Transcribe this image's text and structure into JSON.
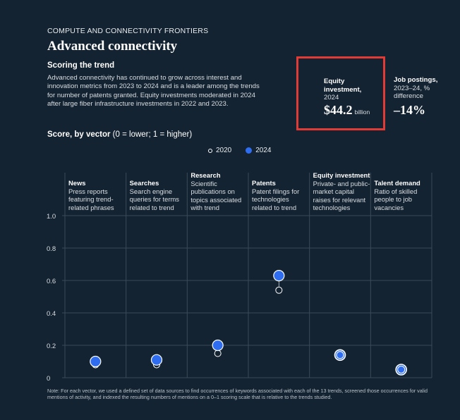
{
  "header": {
    "eyebrow": "COMPUTE AND CONNECTIVITY FRONTIERS",
    "title": "Advanced connectivity",
    "subtitle": "Scoring the trend",
    "description": "Advanced connectivity has continued to grow across interest and innovation metrics from 2023 to 2024 and is a leader among the trends for number of patents granted. Equity investments moderated in 2024 after large fiber infrastructure investments in 2022 and 2023."
  },
  "kpis": [
    {
      "label_bold": "Equity investment,",
      "label_sub": "2024",
      "value": "$44.2",
      "unit": "billion"
    },
    {
      "label_bold": "Job postings,",
      "label_sub": "2023–24, % difference",
      "value": "–14%"
    }
  ],
  "chart_title": {
    "bold": "Score, by vector",
    "rest": " (0 = lower; 1 = higher)"
  },
  "legend": {
    "series_2020": "2020",
    "series_2024": "2024"
  },
  "columns": [
    {
      "name": "News",
      "desc": "Press reports featuring trend-related phrases"
    },
    {
      "name": "Searches",
      "desc": "Search engine queries for terms related to trend"
    },
    {
      "name": "Research",
      "desc": "Scientific publications on topics associated with trend"
    },
    {
      "name": "Patents",
      "desc": "Patent filings for technologies related to trend"
    },
    {
      "name": "Equity investment",
      "desc": "Private- and public-market capital raises for relevant technologies"
    },
    {
      "name": "Talent demand",
      "desc": "Ratio of skilled people to job vacancies"
    }
  ],
  "colors": {
    "background": "#142331",
    "series_2024": "#2f6df0",
    "series_2020": "#ffffff",
    "highlight_box": "#e23a34",
    "grid": "#3a4a58"
  },
  "chart_data": {
    "type": "scatter",
    "categories": [
      "News",
      "Searches",
      "Research",
      "Patents",
      "Equity investment",
      "Talent demand"
    ],
    "series": [
      {
        "name": "2020",
        "values": [
          0.08,
          0.08,
          0.15,
          0.54,
          0.14,
          0.05
        ]
      },
      {
        "name": "2024",
        "values": [
          0.1,
          0.11,
          0.2,
          0.63,
          0.14,
          0.05
        ]
      }
    ],
    "ylim": [
      0,
      1
    ],
    "yticks": [
      "0",
      "0.2",
      "0.4",
      "0.6",
      "0.8",
      "1.0"
    ],
    "grid": true,
    "legend_position": "top-center"
  },
  "note": "Note: For each vector, we used a defined set of data sources to find occurrences of keywords associated with each of the 13 trends, screened those occurrences for valid mentions of activity, and indexed the resulting numbers of mentions on a 0–1 scoring scale that is relative to the trends studied."
}
